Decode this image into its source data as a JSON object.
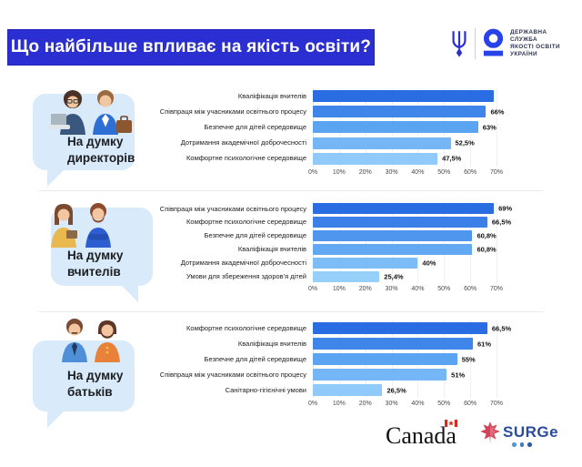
{
  "header": {
    "title": "Що найбільше впливає на якість освіти?",
    "banner_color": "#2B2FD2",
    "org_lines": [
      "ДЕРЖАВНА",
      "СЛУЖБА",
      "ЯКОСТІ ОСВІТИ",
      "УКРАЇНИ"
    ]
  },
  "sections": [
    {
      "audience_line1": "На думку",
      "audience_line2": "директорів"
    },
    {
      "audience_line1": "На думку",
      "audience_line2": "вчителів"
    },
    {
      "audience_line1": "На думку",
      "audience_line2": "батьків"
    }
  ],
  "chart_data": [
    {
      "type": "bar",
      "orientation": "horizontal",
      "title": "На думку директорів",
      "categories": [
        "Кваліфікація вчителів",
        "Співпраця між учасниками освітнього процесу",
        "Безпечне для дітей середовище",
        "Дотримання академічної доброчесності",
        "Комфортне психологічне середовище"
      ],
      "values": [
        69,
        66,
        63,
        52.5,
        47.5
      ],
      "value_labels": [
        "",
        "66%",
        "63%",
        "52,5%",
        "47,5%"
      ],
      "x_ticks": [
        "0%",
        "10%",
        "20%",
        "30%",
        "40%",
        "50%",
        "60%",
        "70%"
      ],
      "xlim": [
        0,
        70
      ],
      "grid": true,
      "bar_colors": [
        "#2A6DE2",
        "#3F86EA",
        "#5BA4F2",
        "#74B6F6",
        "#90CAFA"
      ]
    },
    {
      "type": "bar",
      "orientation": "horizontal",
      "title": "На думку вчителів",
      "categories": [
        "Співпраця між учасниками освітнього процесу",
        "Комфортне психологічне середовище",
        "Безпечне для дітей середовище",
        "Кваліфікація вчителів",
        "Дотримання академічної доброчесності",
        "Умови для збереження здоров'я дітей"
      ],
      "values": [
        69,
        66.5,
        60.8,
        60.8,
        40,
        25.4
      ],
      "value_labels": [
        "69%",
        "66,5%",
        "60,8%",
        "60,8%",
        "40%",
        "25,4%"
      ],
      "x_ticks": [
        "0%",
        "10%",
        "20%",
        "30%",
        "40%",
        "50%",
        "60%",
        "70%"
      ],
      "xlim": [
        0,
        70
      ],
      "grid": true,
      "bar_colors": [
        "#2A6DE2",
        "#3B80E8",
        "#4F96EE",
        "#63A8F2",
        "#7CBCF7",
        "#95CFFA"
      ]
    },
    {
      "type": "bar",
      "orientation": "horizontal",
      "title": "На думку батьків",
      "categories": [
        "Комфортне психологічне середовище",
        "Кваліфікація вчителів",
        "Безпечне для дітей середовище",
        "Співпраця між учасниками освітнього процесу",
        "Санітарно-гігієнічні умови"
      ],
      "values": [
        66.5,
        61,
        55,
        51,
        26.5
      ],
      "value_labels": [
        "66,5%",
        "61%",
        "55%",
        "51%",
        "26,5%"
      ],
      "x_ticks": [
        "0%",
        "10%",
        "20%",
        "30%",
        "40%",
        "50%",
        "60%",
        "70%"
      ],
      "xlim": [
        0,
        70
      ],
      "grid": true,
      "bar_colors": [
        "#2A6DE2",
        "#3F86EA",
        "#5BA4F2",
        "#74B6F6",
        "#90CAFA"
      ]
    }
  ],
  "footer": {
    "canada_wordmark": "Canada",
    "surge_wordmark": "SURGe"
  }
}
